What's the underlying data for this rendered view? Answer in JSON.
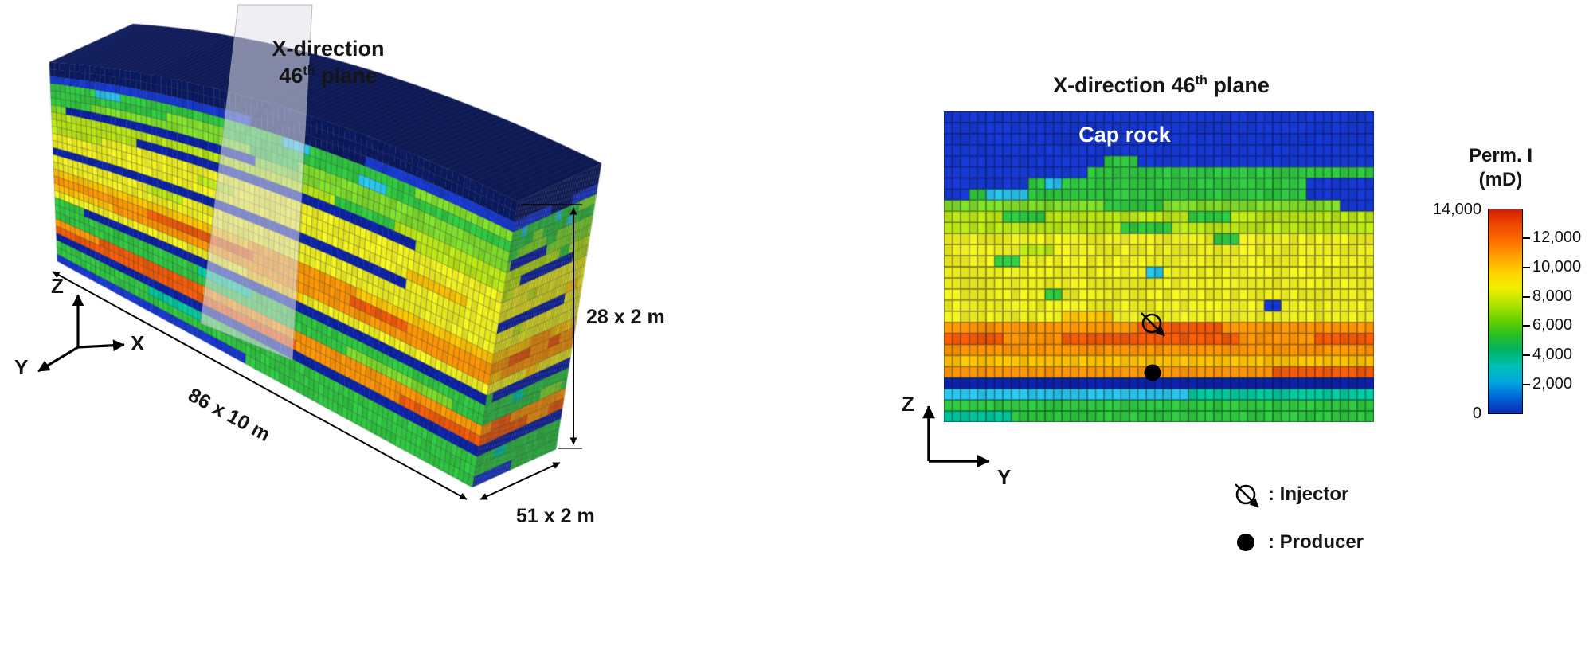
{
  "figure": {
    "left": {
      "plane_label": {
        "line1": "X-direction",
        "num": "46",
        "sup": "th",
        "rest": " plane"
      },
      "axis_labels": {
        "z": "Z",
        "y": "Y",
        "x": "X"
      },
      "dims": {
        "length": "86 x 10 m",
        "height": "28 x 2 m",
        "depth": "51 x 2 m"
      }
    },
    "right": {
      "title": {
        "prefix": "X-direction 46",
        "sup": "th",
        "rest": " plane"
      },
      "cap_rock": "Cap rock",
      "axis_labels": {
        "z": "Z",
        "y": "Y"
      },
      "legend": [
        {
          "symbol": "injector-icon",
          "label": ": Injector"
        },
        {
          "symbol": "producer-icon",
          "label": ": Producer"
        }
      ]
    },
    "colorbar": {
      "title_line1": "Perm. I",
      "title_line2": "(mD)",
      "top_label": "14,000",
      "bottom_label": "0",
      "side_ticks": [
        "12,000",
        "10,000",
        "8,000",
        "6,000",
        "4,000",
        "2,000"
      ],
      "min": 0,
      "max": 14000,
      "gradient_top_to_bottom": [
        "#d41e00",
        "#f04800",
        "#ff6e00",
        "#ffa000",
        "#ffd200",
        "#f0ee00",
        "#b4e400",
        "#6cd200",
        "#28c020",
        "#00b464",
        "#00c0b4",
        "#00a8e0",
        "#0064d8",
        "#0a28b0"
      ]
    }
  },
  "chart_data": {
    "type": "heatmap",
    "title": "X-direction 46th plane",
    "colorbar_label": "Perm. I (mD)",
    "value_range": [
      0,
      14000
    ],
    "grid": {
      "cols": 51,
      "rows": 28
    },
    "front_cols": 86,
    "model_grid": {
      "x": 86,
      "y": 51,
      "z": 28,
      "dx_m": 10,
      "dy_m": 2,
      "dz_m": 2
    },
    "injector_cell": {
      "col": 25,
      "row": 19
    },
    "producer_cell": {
      "col": 25,
      "row": 24
    },
    "palette": {
      "navy": "#0a1a60",
      "blue": "#1638d0",
      "dblue": "#0b22a8",
      "cyan": "#28c2e8",
      "teal": "#00c89c",
      "green": "#2fc73e",
      "lgreen": "#7edc28",
      "ygreen": "#b8e414",
      "yellow": "#eeee1e",
      "amber": "#ffc400",
      "orange": "#ff9600",
      "ored": "#f25a06",
      "red": "#dc2c06"
    },
    "xsec_rows": [
      {
        "b": "blue"
      },
      {
        "b": "blue"
      },
      {
        "b": "blue"
      },
      {
        "b": "blue"
      },
      {
        "b": "blue",
        "p": [
          [
            20,
            23,
            "green"
          ]
        ]
      },
      {
        "b": "blue",
        "p": [
          [
            18,
            51,
            "green"
          ]
        ]
      },
      {
        "b": "green",
        "p": [
          [
            1,
            10,
            "blue"
          ],
          [
            13,
            14,
            "cyan"
          ],
          [
            44,
            51,
            "blue"
          ]
        ]
      },
      {
        "b": "green",
        "p": [
          [
            1,
            3,
            "blue"
          ],
          [
            6,
            10,
            "cyan"
          ],
          [
            44,
            51,
            "blue"
          ]
        ]
      },
      {
        "b": "lgreen",
        "p": [
          [
            20,
            26,
            "green"
          ],
          [
            48,
            51,
            "blue"
          ]
        ]
      },
      {
        "b": "ygreen",
        "p": [
          [
            8,
            12,
            "green"
          ],
          [
            30,
            34,
            "green"
          ]
        ]
      },
      {
        "b": "ygreen",
        "p": [
          [
            22,
            27,
            "green"
          ]
        ]
      },
      {
        "b": "yellow",
        "p": [
          [
            33,
            35,
            "green"
          ]
        ]
      },
      {
        "b": "yellow",
        "p": [
          [
            10,
            13,
            "ygreen"
          ]
        ]
      },
      {
        "b": "yellow",
        "p": [
          [
            7,
            9,
            "green"
          ]
        ]
      },
      {
        "b": "yellow",
        "p": [
          [
            25,
            26,
            "cyan"
          ]
        ]
      },
      {
        "b": "yellow"
      },
      {
        "b": "yellow",
        "p": [
          [
            13,
            14,
            "green"
          ]
        ]
      },
      {
        "b": "yellow",
        "p": [
          [
            39,
            40,
            "blue"
          ]
        ]
      },
      {
        "b": "yellow",
        "p": [
          [
            15,
            20,
            "amber"
          ]
        ]
      },
      {
        "b": "orange",
        "p": [
          [
            24,
            33,
            "ored"
          ]
        ]
      },
      {
        "b": "ored",
        "p": [
          [
            8,
            14,
            "orange"
          ],
          [
            36,
            44,
            "orange"
          ]
        ]
      },
      {
        "b": "orange"
      },
      {
        "b": "amber"
      },
      {
        "b": "orange",
        "p": [
          [
            40,
            51,
            "ored"
          ]
        ]
      },
      {
        "b": "dblue"
      },
      {
        "b": "cyan",
        "p": [
          [
            30,
            51,
            "teal"
          ]
        ]
      },
      {
        "b": "green"
      },
      {
        "b": "green",
        "p": [
          [
            1,
            8,
            "teal"
          ]
        ]
      }
    ],
    "front_rows": [
      {
        "b": "navy"
      },
      {
        "b": "navy"
      },
      {
        "b": "blue",
        "p": [
          [
            40,
            60,
            "navy"
          ]
        ]
      },
      {
        "b": "green",
        "p": [
          [
            10,
            14,
            "cyan"
          ],
          [
            46,
            50,
            "cyan"
          ],
          [
            70,
            86,
            "lgreen"
          ]
        ]
      },
      {
        "b": "green",
        "p": [
          [
            24,
            34,
            "lgreen"
          ],
          [
            60,
            64,
            "cyan"
          ]
        ]
      },
      {
        "b": "lgreen",
        "p": [
          [
            1,
            8,
            "green"
          ],
          [
            40,
            48,
            "green"
          ]
        ]
      },
      {
        "b": "lgreen",
        "p": [
          [
            4,
            40,
            "dblue"
          ]
        ]
      },
      {
        "b": "ygreen",
        "p": [
          [
            56,
            66,
            "green"
          ]
        ]
      },
      {
        "b": "ygreen",
        "p": [
          [
            18,
            70,
            "dblue"
          ]
        ]
      },
      {
        "b": "yellow",
        "p": [
          [
            1,
            10,
            "ygreen"
          ]
        ]
      },
      {
        "b": "yellow",
        "p": [
          [
            30,
            36,
            "ygreen"
          ]
        ]
      },
      {
        "b": "yellow",
        "p": [
          [
            70,
            80,
            "amber"
          ]
        ]
      },
      {
        "b": "dblue",
        "p": [
          [
            70,
            86,
            "yellow"
          ]
        ]
      },
      {
        "b": "yellow",
        "p": [
          [
            20,
            26,
            "ygreen"
          ]
        ]
      },
      {
        "b": "yellow"
      },
      {
        "b": "amber",
        "p": [
          [
            40,
            60,
            "orange"
          ]
        ]
      },
      {
        "b": "orange",
        "p": [
          [
            20,
            40,
            "ored"
          ],
          [
            60,
            70,
            "ored"
          ]
        ]
      },
      {
        "b": "orange",
        "p": [
          [
            1,
            12,
            "amber"
          ]
        ]
      },
      {
        "b": "yellow",
        "p": [
          [
            40,
            50,
            "amber"
          ]
        ]
      },
      {
        "b": "dblue",
        "p": [
          [
            1,
            6,
            "green"
          ]
        ]
      },
      {
        "b": "green",
        "p": [
          [
            30,
            40,
            "teal"
          ]
        ]
      },
      {
        "b": "green",
        "p": [
          [
            60,
            80,
            "lgreen"
          ]
        ]
      },
      {
        "b": "orange",
        "p": [
          [
            10,
            30,
            "ored"
          ]
        ]
      },
      {
        "b": "ored",
        "p": [
          [
            50,
            70,
            "orange"
          ]
        ]
      },
      {
        "b": "dblue"
      },
      {
        "b": "green",
        "p": [
          [
            20,
            30,
            "teal"
          ]
        ]
      },
      {
        "b": "green"
      },
      {
        "b": "blue",
        "p": [
          [
            40,
            86,
            "green"
          ]
        ]
      }
    ]
  }
}
